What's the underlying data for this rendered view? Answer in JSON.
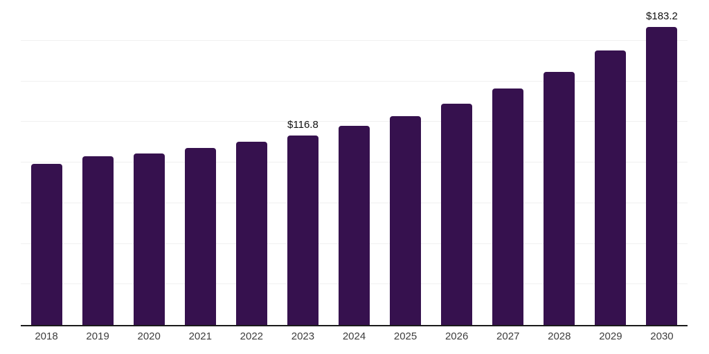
{
  "chart_data": {
    "type": "bar",
    "title": "",
    "xlabel": "",
    "ylabel": "",
    "categories": [
      "2018",
      "2019",
      "2020",
      "2021",
      "2022",
      "2023",
      "2024",
      "2025",
      "2026",
      "2027",
      "2028",
      "2029",
      "2030"
    ],
    "values": [
      99.2,
      104.0,
      105.5,
      109.0,
      112.9,
      116.8,
      122.5,
      128.4,
      136.2,
      145.6,
      155.8,
      169.0,
      183.2
    ],
    "data_labels": [
      "",
      "",
      "",
      "",
      "",
      "$116.8",
      "",
      "",
      "",
      "",
      "",
      "",
      "$183.2"
    ],
    "ylim": [
      0,
      200
    ],
    "gridline_step": 25,
    "grid": true,
    "legend": "none",
    "colors": {
      "bar": "#36114e",
      "axis": "#1a1a1a",
      "gridline": "#f0f0f0",
      "value_label": "#111111",
      "tick_label": "#3d3d3d",
      "background": "#ffffff"
    }
  }
}
